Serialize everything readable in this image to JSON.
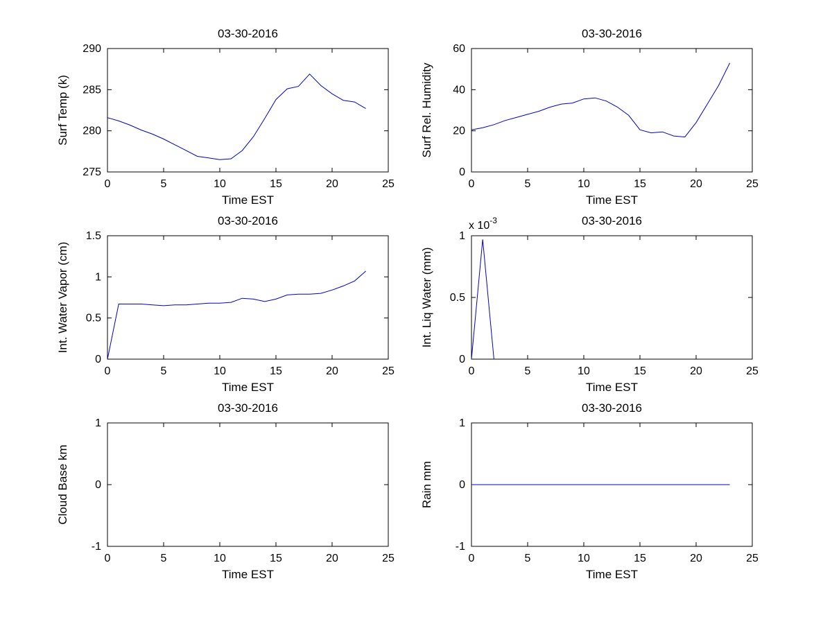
{
  "figure": {
    "background": "#ffffff"
  },
  "colors": {
    "line": "#0000CC",
    "axis": "#000000"
  },
  "chart_data": [
    {
      "type": "line",
      "title": "03-30-2016",
      "ylabel": "Surf Temp (k)",
      "xlabel": "Time EST",
      "xlim": [
        0,
        25
      ],
      "ylim": [
        275,
        290
      ],
      "xticks": [
        "0",
        "5",
        "10",
        "15",
        "20",
        "25"
      ],
      "yticks": [
        "275",
        "280",
        "285",
        "290"
      ],
      "x": [
        0,
        1,
        2,
        3,
        4,
        5,
        6,
        7,
        8,
        9,
        10,
        11,
        12,
        13,
        14,
        15,
        16,
        17,
        18,
        19,
        20,
        21,
        22,
        23
      ],
      "values": [
        281.6,
        281.2,
        280.7,
        280.1,
        279.6,
        279.0,
        278.3,
        277.6,
        276.9,
        276.7,
        276.5,
        276.6,
        277.6,
        279.3,
        281.5,
        283.8,
        285.1,
        285.4,
        286.9,
        285.5,
        284.5,
        283.7,
        283.5,
        282.7
      ]
    },
    {
      "type": "line",
      "title": "03-30-2016",
      "ylabel": "Surf Rel. Humidity",
      "xlabel": "Time EST",
      "xlim": [
        0,
        25
      ],
      "ylim": [
        0,
        60
      ],
      "xticks": [
        "0",
        "5",
        "10",
        "15",
        "20",
        "25"
      ],
      "yticks": [
        "0",
        "20",
        "40",
        "60"
      ],
      "x": [
        0,
        1,
        2,
        3,
        4,
        5,
        6,
        7,
        8,
        9,
        10,
        11,
        12,
        13,
        14,
        15,
        16,
        17,
        18,
        19,
        20,
        21,
        22,
        23
      ],
      "values": [
        20.5,
        21.5,
        23.0,
        25.0,
        26.5,
        28.0,
        29.5,
        31.5,
        33.0,
        33.5,
        35.5,
        36.0,
        34.5,
        31.5,
        27.5,
        20.5,
        19.0,
        19.5,
        17.5,
        17.0,
        24.0,
        33.0,
        42.0,
        53.0
      ]
    },
    {
      "type": "line",
      "title": "03-30-2016",
      "ylabel": "Int. Water Vapor (cm)",
      "xlabel": "Time EST",
      "xlim": [
        0,
        25
      ],
      "ylim": [
        0,
        1.5
      ],
      "xticks": [
        "0",
        "5",
        "10",
        "15",
        "20",
        "25"
      ],
      "yticks": [
        "0",
        "0.5",
        "1",
        "1.5"
      ],
      "x": [
        0,
        1,
        2,
        3,
        4,
        5,
        6,
        7,
        8,
        9,
        10,
        11,
        12,
        13,
        14,
        15,
        16,
        17,
        18,
        19,
        20,
        21,
        22,
        23
      ],
      "values": [
        0.0,
        0.67,
        0.67,
        0.67,
        0.66,
        0.65,
        0.66,
        0.66,
        0.67,
        0.68,
        0.68,
        0.69,
        0.74,
        0.73,
        0.7,
        0.73,
        0.78,
        0.79,
        0.79,
        0.8,
        0.84,
        0.89,
        0.95,
        1.07
      ]
    },
    {
      "type": "line",
      "title": "03-30-2016",
      "ylabel": "Int. Liq Water (mm)",
      "xlabel": "Time EST",
      "xlim": [
        0,
        25
      ],
      "ylim": [
        0,
        1
      ],
      "xticks": [
        "0",
        "5",
        "10",
        "15",
        "20",
        "25"
      ],
      "yticks": [
        "0",
        "0.5",
        "1"
      ],
      "exp_label": {
        "prefix": "x 10",
        "exponent": "-3"
      },
      "y_unit_multiplier": 0.001,
      "x": [
        0,
        1,
        2
      ],
      "values": [
        0,
        0.97,
        0
      ]
    },
    {
      "type": "line",
      "title": "03-30-2016",
      "ylabel": "Cloud Base km",
      "xlabel": "Time EST",
      "xlim": [
        0,
        25
      ],
      "ylim": [
        -1,
        1
      ],
      "xticks": [
        "0",
        "5",
        "10",
        "15",
        "20",
        "25"
      ],
      "yticks": [
        "-1",
        "0",
        "1"
      ],
      "x": [],
      "values": []
    },
    {
      "type": "line",
      "title": "03-30-2016",
      "ylabel": "Rain mm",
      "xlabel": "Time EST",
      "xlim": [
        0,
        25
      ],
      "ylim": [
        -1,
        1
      ],
      "xticks": [
        "0",
        "5",
        "10",
        "15",
        "20",
        "25"
      ],
      "yticks": [
        "-1",
        "0",
        "1"
      ],
      "x": [
        0,
        1,
        2,
        3,
        4,
        5,
        6,
        7,
        8,
        9,
        10,
        11,
        12,
        13,
        14,
        15,
        16,
        17,
        18,
        19,
        20,
        21,
        22,
        23
      ],
      "values": [
        0,
        0,
        0,
        0,
        0,
        0,
        0,
        0,
        0,
        0,
        0,
        0,
        0,
        0,
        0,
        0,
        0,
        0,
        0,
        0,
        0,
        0,
        0,
        0
      ]
    }
  ]
}
